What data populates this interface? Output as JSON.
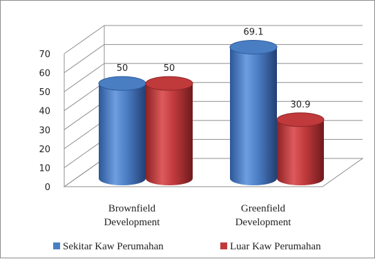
{
  "chart_data": {
    "type": "bar",
    "categories": [
      [
        "Brownfield",
        "Development"
      ],
      [
        "Greenfield",
        "Development"
      ]
    ],
    "series": [
      {
        "name": "Sekitar Kaw Perumahan",
        "color": "#4a7ec3",
        "values": [
          50,
          69.1
        ],
        "labels": [
          "50",
          "69.1"
        ]
      },
      {
        "name": "Luar Kaw Perumahan",
        "color": "#c0393b",
        "values": [
          50,
          30.9
        ],
        "labels": [
          "50",
          "30.9"
        ]
      }
    ],
    "ylim": [
      0,
      70
    ],
    "yticks": [
      "0",
      "10",
      "20",
      "30",
      "40",
      "50",
      "60",
      "70"
    ],
    "grid": true,
    "legend": "bottom",
    "style": "3d-cylinder"
  }
}
